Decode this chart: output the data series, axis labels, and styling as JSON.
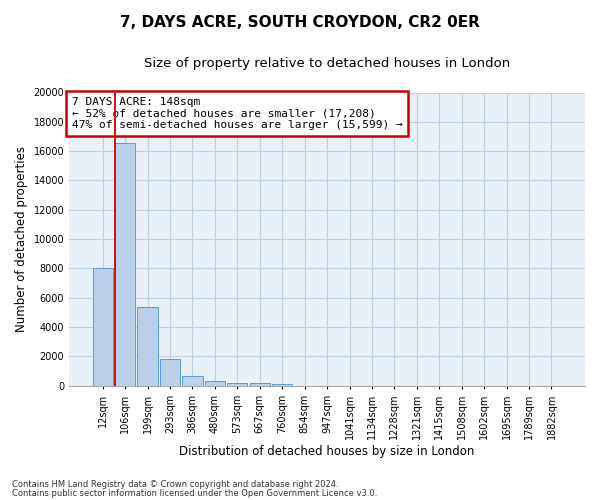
{
  "title1": "7, DAYS ACRE, SOUTH CROYDON, CR2 0ER",
  "title2": "Size of property relative to detached houses in London",
  "xlabel": "Distribution of detached houses by size in London",
  "ylabel": "Number of detached properties",
  "categories": [
    "12sqm",
    "106sqm",
    "199sqm",
    "293sqm",
    "386sqm",
    "480sqm",
    "573sqm",
    "667sqm",
    "760sqm",
    "854sqm",
    "947sqm",
    "1041sqm",
    "1134sqm",
    "1228sqm",
    "1321sqm",
    "1415sqm",
    "1508sqm",
    "1602sqm",
    "1695sqm",
    "1789sqm",
    "1882sqm"
  ],
  "values": [
    8050,
    16550,
    5350,
    1850,
    700,
    320,
    200,
    160,
    120,
    0,
    0,
    0,
    0,
    0,
    0,
    0,
    0,
    0,
    0,
    0,
    0
  ],
  "bar_color": "#b8d0e8",
  "bar_edge_color": "#5b9bd5",
  "highlight_color": "#cc0000",
  "ylim": [
    0,
    20000
  ],
  "yticks": [
    0,
    2000,
    4000,
    6000,
    8000,
    10000,
    12000,
    14000,
    16000,
    18000,
    20000
  ],
  "annotation_title": "7 DAYS ACRE: 148sqm",
  "annotation_line1": "← 52% of detached houses are smaller (17,208)",
  "annotation_line2": "47% of semi-detached houses are larger (15,599) →",
  "annotation_box_color": "#ffffff",
  "annotation_box_edge": "#cc0000",
  "footnote1": "Contains HM Land Registry data © Crown copyright and database right 2024.",
  "footnote2": "Contains public sector information licensed under the Open Government Licence v3.0.",
  "bg_color": "#ffffff",
  "grid_color": "#c0d0e0",
  "title1_fontsize": 11,
  "title2_fontsize": 9.5,
  "axis_label_fontsize": 8.5,
  "tick_fontsize": 7,
  "annotation_fontsize": 8,
  "footnote_fontsize": 6,
  "red_line_x": 1.4
}
